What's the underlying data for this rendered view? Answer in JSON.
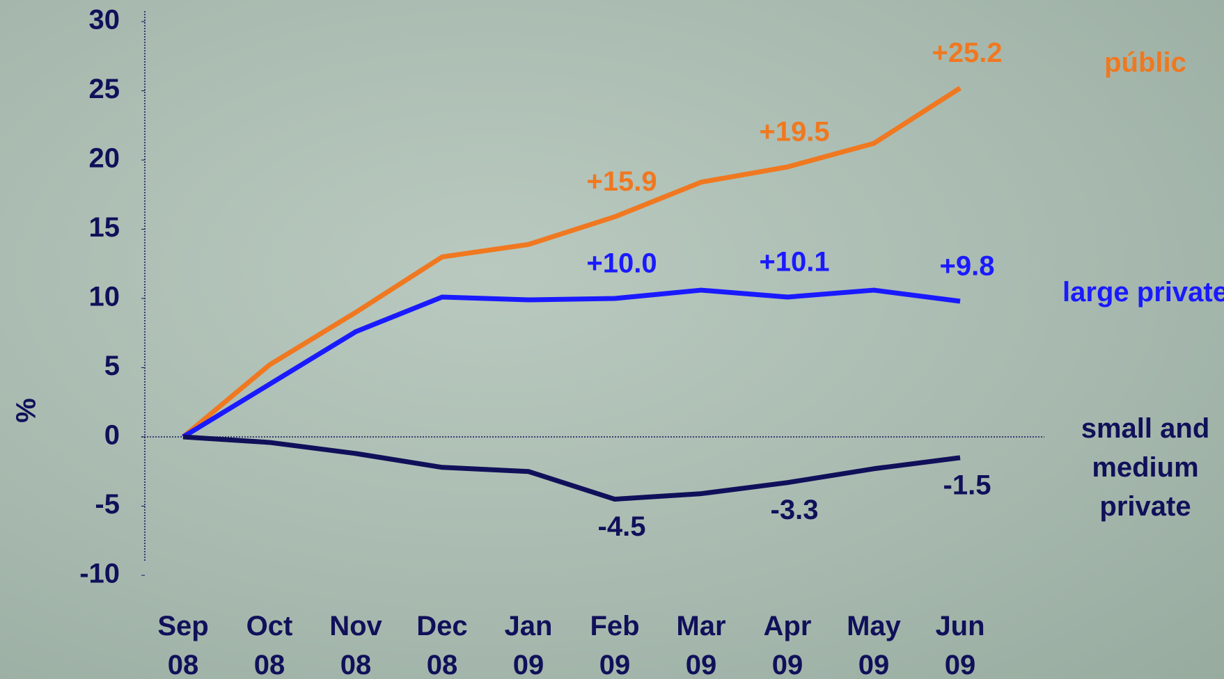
{
  "chart_data": {
    "type": "line",
    "categories": [
      "Sep 08",
      "Oct 08",
      "Nov 08",
      "Dec 08",
      "Jan 09",
      "Feb 09",
      "Mar 09",
      "Apr 09",
      "May 09",
      "Jun 09"
    ],
    "series": [
      {
        "name": "públic",
        "color": "#f07820",
        "values": [
          0,
          5.2,
          9.0,
          13.0,
          13.9,
          15.9,
          18.4,
          19.5,
          21.2,
          25.2
        ],
        "value_labels": [
          null,
          null,
          null,
          null,
          null,
          "+15.9",
          null,
          "+19.5",
          null,
          "+25.2"
        ]
      },
      {
        "name": "large private",
        "color": "#1a1aff",
        "values": [
          0,
          3.8,
          7.6,
          10.1,
          9.9,
          10.0,
          10.6,
          10.1,
          10.6,
          9.8
        ],
        "value_labels": [
          null,
          null,
          null,
          null,
          null,
          "+10.0",
          null,
          "+10.1",
          null,
          "+9.8"
        ]
      },
      {
        "name": "small and medium private",
        "color": "#10105a",
        "values": [
          0,
          -0.4,
          -1.2,
          -2.2,
          -2.5,
          -4.5,
          -4.1,
          -3.3,
          -2.3,
          -1.5
        ],
        "value_labels": [
          null,
          null,
          null,
          null,
          null,
          "-4.5",
          null,
          "-3.3",
          null,
          "-1.5"
        ]
      }
    ],
    "y_label": "%",
    "ylim": [
      -10,
      30
    ],
    "yticks": [
      -10,
      -5,
      0,
      5,
      10,
      15,
      20,
      25,
      30
    ]
  }
}
